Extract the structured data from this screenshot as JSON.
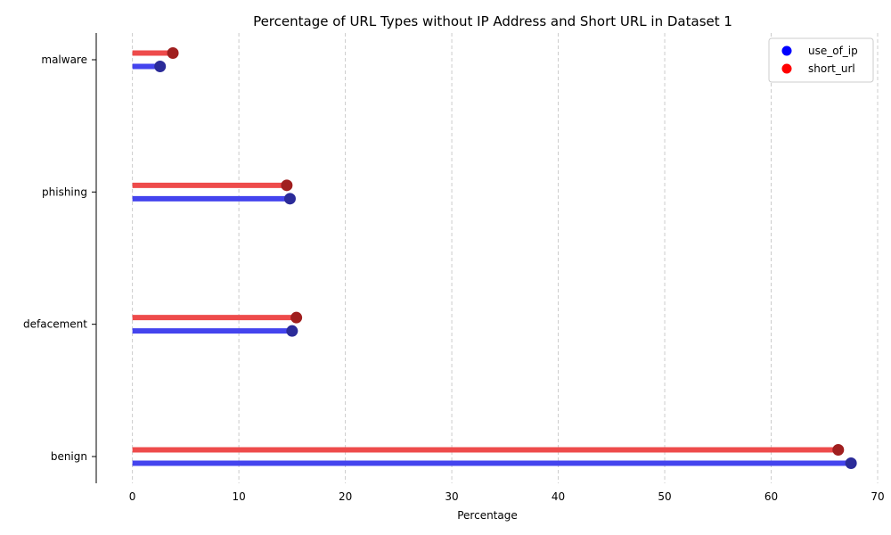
{
  "chart_data": {
    "type": "lollipop",
    "orientation": "horizontal",
    "title": "Percentage of URL Types without IP Address and Short URL in Dataset 1",
    "xlabel": "Percentage",
    "ylabel": "",
    "xlim": [
      -3.4,
      70
    ],
    "xticks": [
      0,
      10,
      20,
      30,
      40,
      50,
      60,
      70
    ],
    "categories": [
      "benign",
      "defacement",
      "phishing",
      "malware"
    ],
    "series": [
      {
        "name": "use_of_ip",
        "values": [
          67.5,
          15.0,
          14.8,
          2.6
        ],
        "line_color": "#4444ee",
        "marker_color": "#2b2b99"
      },
      {
        "name": "short_url",
        "values": [
          66.3,
          15.4,
          14.5,
          3.8
        ],
        "line_color": "#ee4b4b",
        "marker_color": "#a01f1f"
      }
    ],
    "legend": {
      "position": "top-right",
      "entries": [
        {
          "label": "use_of_ip",
          "color": "#0000ff"
        },
        {
          "label": "short_url",
          "color": "#ff0000"
        }
      ]
    },
    "grid": {
      "x": true,
      "y": false,
      "style": "dashed"
    }
  }
}
